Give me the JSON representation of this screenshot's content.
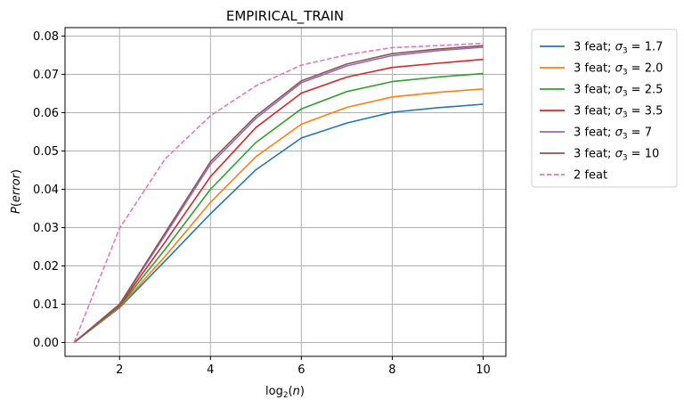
{
  "chart_data": {
    "type": "line",
    "title": "EMPIRICAL_TRAIN",
    "xlabel": "log₂(n)",
    "ylabel": "P(error)",
    "xlim": [
      0.8,
      10.5
    ],
    "ylim": [
      -0.0036,
      0.0822
    ],
    "x_ticks": [
      2,
      4,
      6,
      8,
      10
    ],
    "y_ticks": [
      0.0,
      0.01,
      0.02,
      0.03,
      0.04,
      0.05,
      0.06,
      0.07,
      0.08
    ],
    "y_tick_labels": [
      "0.00",
      "0.01",
      "0.02",
      "0.03",
      "0.04",
      "0.05",
      "0.06",
      "0.07",
      "0.08"
    ],
    "x_tick_labels": [
      "2",
      "4",
      "6",
      "8",
      "10"
    ],
    "grid": true,
    "legend_position": "outside-right",
    "x": [
      1,
      2,
      3,
      4,
      5,
      6,
      7,
      8,
      9,
      10
    ],
    "series": [
      {
        "name_prefix": "3 feat; ",
        "name_symbol": "σ",
        "name_sub": "3",
        "name_suffix": " = 1.7",
        "color": "#1f77b4",
        "dash": "solid",
        "values": [
          0.0,
          0.0091,
          0.0213,
          0.0336,
          0.0451,
          0.0534,
          0.0573,
          0.0601,
          0.0613,
          0.0622
        ]
      },
      {
        "name_prefix": "3 feat; ",
        "name_symbol": "σ",
        "name_sub": "3",
        "name_suffix": " = 2.0",
        "color": "#ff7f0e",
        "dash": "solid",
        "values": [
          0.0,
          0.0093,
          0.0225,
          0.0366,
          0.0485,
          0.057,
          0.0614,
          0.0641,
          0.0653,
          0.0662
        ]
      },
      {
        "name_prefix": "3 feat; ",
        "name_symbol": "σ",
        "name_sub": "3",
        "name_suffix": " = 2.5",
        "color": "#2ca02c",
        "dash": "solid",
        "values": [
          0.0,
          0.0095,
          0.0243,
          0.04,
          0.0522,
          0.061,
          0.0655,
          0.0681,
          0.0693,
          0.0702
        ]
      },
      {
        "name_prefix": "3 feat; ",
        "name_symbol": "σ",
        "name_sub": "3",
        "name_suffix": " = 3.5",
        "color": "#d62728",
        "dash": "solid",
        "values": [
          0.0,
          0.0097,
          0.0262,
          0.0433,
          0.0561,
          0.0651,
          0.0693,
          0.0718,
          0.0729,
          0.0739
        ]
      },
      {
        "name_prefix": "3 feat; ",
        "name_symbol": "σ",
        "name_sub": "3",
        "name_suffix": " = 7",
        "color": "#9467bd",
        "dash": "solid",
        "values": [
          0.0,
          0.0099,
          0.028,
          0.0465,
          0.0585,
          0.0678,
          0.0722,
          0.0749,
          0.0762,
          0.0771
        ]
      },
      {
        "name_prefix": "3 feat; ",
        "name_symbol": "σ",
        "name_sub": "3",
        "name_suffix": " = 10",
        "color": "#8c564b",
        "dash": "solid",
        "values": [
          0.0,
          0.01,
          0.0286,
          0.0472,
          0.0591,
          0.0683,
          0.0727,
          0.0754,
          0.0766,
          0.0775
        ]
      },
      {
        "name_prefix": "2 feat",
        "name_symbol": "",
        "name_sub": "",
        "name_suffix": "",
        "color": "#e377c2",
        "dash": "dashed",
        "values": [
          0.0,
          0.0298,
          0.0479,
          0.0592,
          0.067,
          0.0724,
          0.0751,
          0.077,
          0.0775,
          0.0781
        ]
      }
    ]
  }
}
